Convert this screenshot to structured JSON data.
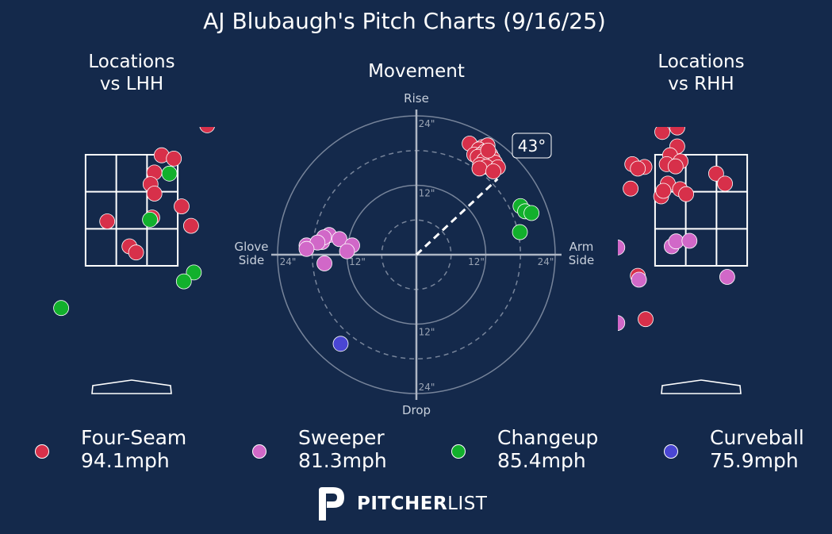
{
  "title": "AJ Blubaugh's Pitch Charts (9/16/25)",
  "panels": {
    "lhh_title_line1": "Locations",
    "lhh_title_line2": "vs LHH",
    "movement_title": "Movement",
    "rhh_title_line1": "Locations",
    "rhh_title_line2": "vs RHH"
  },
  "colors": {
    "background": "#14294b",
    "four_seam": "#d7304a",
    "sweeper": "#d168c8",
    "changeup": "#12b02c",
    "curveball": "#4a46d4"
  },
  "legend": [
    {
      "name": "Four-Seam",
      "speed": "94.1mph",
      "color": "#d7304a"
    },
    {
      "name": "Sweeper",
      "speed": "81.3mph",
      "color": "#d168c8"
    },
    {
      "name": "Changeup",
      "speed": "85.4mph",
      "color": "#12b02c"
    },
    {
      "name": "Curveball",
      "speed": "75.9mph",
      "color": "#4a46d4"
    }
  ],
  "brand": {
    "logo_icon": "pitcherlist-logo-icon",
    "bold": "PITCHER",
    "light": "LIST"
  },
  "chart_data": [
    {
      "type": "scatter",
      "title": "Movement",
      "axis_labels": {
        "top": "Rise",
        "bottom": "Drop",
        "left": "Glove Side",
        "right": "Arm Side"
      },
      "ring_labels": [
        "12\"",
        "24\""
      ],
      "arm_angle": "43°",
      "xlim": [
        -24,
        24
      ],
      "ylim": [
        -24,
        24
      ],
      "series": [
        {
          "name": "Four-Seam",
          "color": "#d7304a",
          "points": [
            [
              9.2,
              19.2
            ],
            [
              11.4,
              18.6
            ],
            [
              12.3,
              18.9
            ],
            [
              10.8,
              18.2
            ],
            [
              11.8,
              17.8
            ],
            [
              12.8,
              17.3
            ],
            [
              10.0,
              17.3
            ],
            [
              11.1,
              17.2
            ],
            [
              12.5,
              16.7
            ],
            [
              13.2,
              16.6
            ],
            [
              10.6,
              16.9
            ],
            [
              11.7,
              16.3
            ],
            [
              13.6,
              15.9
            ],
            [
              11.0,
              15.5
            ],
            [
              12.1,
              15.2
            ],
            [
              14.1,
              15.1
            ],
            [
              10.9,
              14.9
            ],
            [
              13.3,
              14.4
            ],
            [
              12.4,
              18.0
            ]
          ]
        },
        {
          "name": "Sweeper",
          "color": "#d168c8",
          "points": [
            [
              -15.1,
              3.4
            ],
            [
              -16.3,
              2.2
            ],
            [
              -13.3,
              2.7
            ],
            [
              -19.0,
              1.6
            ],
            [
              -16.0,
              3.0
            ],
            [
              -17.1,
              2.1
            ],
            [
              -11.1,
              1.6
            ],
            [
              -12.0,
              0.6
            ],
            [
              -19.0,
              1.0
            ],
            [
              -15.9,
              -1.5
            ]
          ]
        },
        {
          "name": "Changeup",
          "color": "#12b02c",
          "points": [
            [
              18.0,
              8.4
            ],
            [
              18.8,
              7.5
            ],
            [
              19.9,
              7.2
            ],
            [
              17.9,
              3.9
            ]
          ]
        },
        {
          "name": "Curveball",
          "color": "#4a46d4",
          "points": [
            [
              -13.1,
              -15.4
            ]
          ]
        }
      ]
    },
    {
      "type": "scatter",
      "title": "Locations vs LHH",
      "xlim": [
        -2.5,
        2.5
      ],
      "ylim": [
        0,
        5
      ],
      "strike_zone": {
        "x": [
          -0.83,
          0.83
        ],
        "y": [
          1.5,
          3.5
        ]
      },
      "series": [
        {
          "name": "Four-Seam",
          "color": "#d7304a",
          "points": [
            [
              1.36,
              4.03
            ],
            [
              0.54,
              3.49
            ],
            [
              0.76,
              3.43
            ],
            [
              0.41,
              3.18
            ],
            [
              0.34,
              2.97
            ],
            [
              0.41,
              2.8
            ],
            [
              0.9,
              2.57
            ],
            [
              0.37,
              2.37
            ],
            [
              -0.44,
              2.3
            ],
            [
              1.07,
              2.22
            ],
            [
              -0.04,
              1.85
            ],
            [
              0.08,
              1.74
            ]
          ]
        },
        {
          "name": "Changeup",
          "color": "#12b02c",
          "points": [
            [
              0.68,
              3.16
            ],
            [
              0.33,
              2.33
            ],
            [
              1.12,
              1.38
            ],
            [
              0.94,
              1.22
            ],
            [
              -1.27,
              0.74
            ]
          ]
        }
      ]
    },
    {
      "type": "scatter",
      "title": "Locations vs RHH",
      "xlim": [
        -2.5,
        2.5
      ],
      "ylim": [
        0,
        5
      ],
      "strike_zone": {
        "x": [
          -0.83,
          0.83
        ],
        "y": [
          1.5,
          3.5
        ]
      },
      "series": [
        {
          "name": "Four-Seam",
          "color": "#d7304a",
          "points": [
            [
              -0.79,
              4.24
            ],
            [
              -0.7,
              3.91
            ],
            [
              -0.43,
              3.99
            ],
            [
              -0.43,
              3.65
            ],
            [
              -0.56,
              3.49
            ],
            [
              -0.37,
              3.38
            ],
            [
              -0.62,
              3.33
            ],
            [
              -0.46,
              3.29
            ],
            [
              -1.24,
              3.33
            ],
            [
              -1.02,
              3.28
            ],
            [
              -1.14,
              3.25
            ],
            [
              -0.6,
              2.98
            ],
            [
              -0.38,
              2.88
            ],
            [
              -1.27,
              2.89
            ],
            [
              -0.72,
              2.75
            ],
            [
              -0.68,
              2.85
            ],
            [
              -0.27,
              2.79
            ],
            [
              0.27,
              3.16
            ],
            [
              0.43,
              2.98
            ],
            [
              -1.14,
              1.32
            ],
            [
              -1.0,
              0.54
            ]
          ]
        },
        {
          "name": "Sweeper",
          "color": "#d168c8",
          "points": [
            [
              -0.53,
              1.85
            ],
            [
              -0.45,
              1.94
            ],
            [
              -0.21,
              1.95
            ],
            [
              -1.12,
              1.25
            ],
            [
              0.47,
              1.3
            ],
            [
              -1.51,
              1.83
            ],
            [
              -1.51,
              0.47
            ]
          ]
        }
      ]
    }
  ]
}
